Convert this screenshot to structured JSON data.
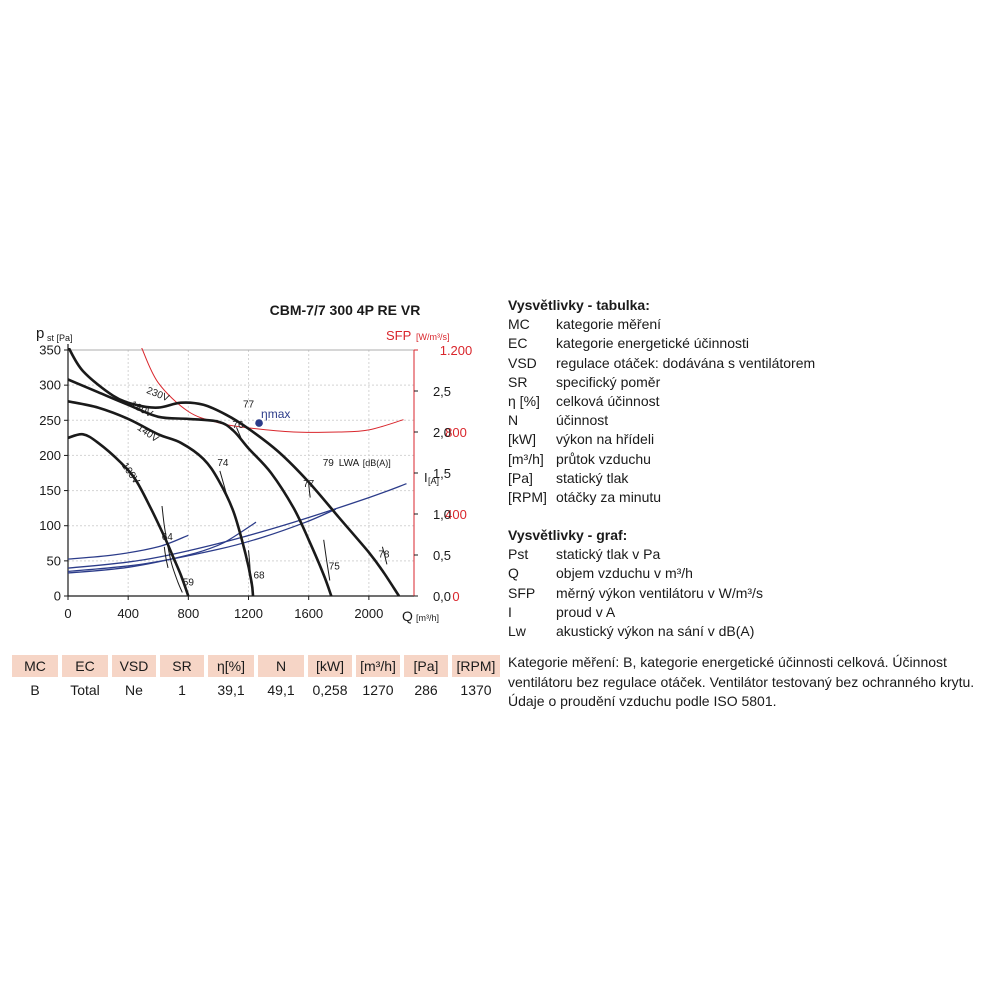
{
  "chart_data": {
    "type": "line",
    "title": "CBM-7/7 300 4P RE VR",
    "x_axis": {
      "label": "Q",
      "unit": "[m³/h]",
      "range": [
        0,
        2300
      ],
      "ticks": [
        "0",
        "400",
        "800",
        "1200",
        "1600",
        "2000"
      ]
    },
    "y_axis_left": {
      "label": "p",
      "label_sub": "st [Pa]",
      "range": [
        0,
        350
      ],
      "ticks": [
        "0",
        "50",
        "100",
        "150",
        "200",
        "250",
        "300",
        "350"
      ]
    },
    "y_axis_sfp": {
      "label": "SFP",
      "unit": "[W/m³/s]",
      "range": [
        0,
        1200
      ],
      "ticks": [
        "0",
        "400",
        "800",
        "1.200"
      ],
      "color": "#d9262c"
    },
    "y_axis_current": {
      "label": "I",
      "unit": "[A]",
      "range": [
        0,
        3.0
      ],
      "ticks": [
        "0,0",
        "0,5",
        "1,0",
        "1,5",
        "2,0",
        "2,5"
      ]
    },
    "grid": true,
    "colors": {
      "pressure": "#1a1a1a",
      "current": "#2c3c8a",
      "sfp": "#d9262c",
      "eta": "#2c3c8a"
    },
    "pressure_curves": [
      {
        "name": "230V",
        "points": [
          [
            0,
            355
          ],
          [
            100,
            320
          ],
          [
            300,
            285
          ],
          [
            450,
            272
          ],
          [
            600,
            268
          ],
          [
            750,
            275
          ],
          [
            900,
            272
          ],
          [
            1050,
            258
          ],
          [
            1200,
            238
          ],
          [
            1400,
            205
          ],
          [
            1600,
            162
          ],
          [
            1800,
            112
          ],
          [
            2000,
            62
          ],
          [
            2100,
            33
          ],
          [
            2200,
            0
          ]
        ]
      },
      {
        "name": "180V",
        "points": [
          [
            0,
            308
          ],
          [
            200,
            290
          ],
          [
            400,
            272
          ],
          [
            600,
            255
          ],
          [
            800,
            252
          ],
          [
            1000,
            248
          ],
          [
            1100,
            235
          ],
          [
            1200,
            210
          ],
          [
            1350,
            175
          ],
          [
            1500,
            125
          ],
          [
            1600,
            80
          ],
          [
            1700,
            30
          ],
          [
            1750,
            0
          ]
        ]
      },
      {
        "name": "140V",
        "points": [
          [
            0,
            277
          ],
          [
            200,
            268
          ],
          [
            400,
            252
          ],
          [
            600,
            230
          ],
          [
            750,
            218
          ],
          [
            900,
            195
          ],
          [
            1000,
            165
          ],
          [
            1100,
            120
          ],
          [
            1180,
            60
          ],
          [
            1220,
            20
          ],
          [
            1230,
            0
          ]
        ]
      },
      {
        "name": "100V",
        "points": [
          [
            0,
            225
          ],
          [
            100,
            230
          ],
          [
            200,
            218
          ],
          [
            350,
            190
          ],
          [
            450,
            165
          ],
          [
            550,
            125
          ],
          [
            650,
            80
          ],
          [
            700,
            55
          ],
          [
            750,
            30
          ],
          [
            800,
            0
          ]
        ]
      }
    ],
    "current_curves": [
      {
        "name": "230V",
        "points": [
          [
            0,
            0.34
          ],
          [
            500,
            0.44
          ],
          [
            1000,
            0.64
          ],
          [
            1500,
            0.9
          ],
          [
            2000,
            1.2
          ],
          [
            2250,
            1.37
          ]
        ]
      },
      {
        "name": "180V",
        "points": [
          [
            0,
            0.3
          ],
          [
            500,
            0.39
          ],
          [
            1000,
            0.57
          ],
          [
            1300,
            0.72
          ],
          [
            1580,
            0.9
          ],
          [
            1780,
            1.06
          ]
        ]
      },
      {
        "name": "140V",
        "points": [
          [
            0,
            0.28
          ],
          [
            400,
            0.35
          ],
          [
            800,
            0.5
          ],
          [
            1000,
            0.62
          ],
          [
            1100,
            0.72
          ],
          [
            1250,
            0.9
          ]
        ]
      },
      {
        "name": "100V",
        "points": [
          [
            0,
            0.45
          ],
          [
            300,
            0.5
          ],
          [
            600,
            0.6
          ],
          [
            800,
            0.74
          ]
        ]
      }
    ],
    "sfp_curve": {
      "points": [
        [
          490,
          1210
        ],
        [
          600,
          1040
        ],
        [
          800,
          900
        ],
        [
          1000,
          845
        ],
        [
          1200,
          820
        ],
        [
          1500,
          800
        ],
        [
          1800,
          800
        ],
        [
          2000,
          810
        ],
        [
          2230,
          860
        ]
      ]
    },
    "eta_max": {
      "label": "ηmax",
      "point": [
        1270,
        246
      ]
    },
    "iso_lines": [
      {
        "label": "59",
        "points": [
          [
            625,
            128
          ],
          [
            640,
            100
          ],
          [
            660,
            75
          ],
          [
            690,
            45
          ],
          [
            730,
            20
          ],
          [
            760,
            5
          ]
        ]
      },
      {
        "label": "64",
        "points": [
          [
            640,
            70
          ],
          [
            650,
            55
          ],
          [
            665,
            40
          ]
        ]
      },
      {
        "label": "68",
        "points": [
          [
            1200,
            65
          ],
          [
            1210,
            40
          ],
          [
            1215,
            18
          ]
        ]
      },
      {
        "label": "74",
        "points": [
          [
            1010,
            178
          ],
          [
            1060,
            140
          ]
        ]
      },
      {
        "label": "75",
        "points": [
          [
            1700,
            80
          ],
          [
            1720,
            50
          ],
          [
            1740,
            22
          ]
        ]
      },
      {
        "label": "76",
        "points": [
          [
            1120,
            240
          ],
          [
            1150,
            225
          ]
        ]
      },
      {
        "label": "77",
        "points": [
          [
            1600,
            160
          ],
          [
            1610,
            140
          ]
        ]
      },
      {
        "label": "78",
        "points": [
          [
            2090,
            70
          ],
          [
            2120,
            45
          ]
        ]
      }
    ],
    "iso_labels": [
      {
        "text": "59",
        "at": [
          800,
          15
        ]
      },
      {
        "text": "64",
        "at": [
          660,
          80
        ]
      },
      {
        "text": "68",
        "at": [
          1270,
          25
        ]
      },
      {
        "text": "74",
        "at": [
          1030,
          185
        ]
      },
      {
        "text": "75",
        "at": [
          1770,
          38
        ]
      },
      {
        "text": "76",
        "at": [
          1130,
          239
        ]
      },
      {
        "text": "77",
        "at": [
          1200,
          268
        ]
      },
      {
        "text": "77",
        "at": [
          1600,
          155
        ]
      },
      {
        "text": "78",
        "at": [
          2100,
          55
        ]
      },
      {
        "text": "79",
        "at": [
          1730,
          185
        ]
      }
    ],
    "voltage_labels": [
      {
        "text": "230V",
        "at": [
          590,
          283
        ],
        "angle": 22
      },
      {
        "text": "180V",
        "at": [
          480,
          262
        ],
        "angle": 28
      },
      {
        "text": "140V",
        "at": [
          520,
          228
        ],
        "angle": 35
      },
      {
        "text": "100V",
        "at": [
          400,
          172
        ],
        "angle": 55
      }
    ],
    "lwa_label": {
      "text": "LWA",
      "sub": "[dB(A)]",
      "at": [
        1800,
        185
      ]
    }
  },
  "parameters_table": {
    "headers": [
      "MC",
      "EC",
      "VSD",
      "SR",
      "η[%]",
      "N",
      "[kW]",
      "[m³/h]",
      "[Pa]",
      "[RPM]"
    ],
    "row": [
      "B",
      "Total",
      "Ne",
      "1",
      "39,1",
      "49,1",
      "0,258",
      "1270",
      "286",
      "1370"
    ]
  },
  "legend_table": {
    "title": "Vysvětlivky - tabulka:",
    "items": [
      {
        "key": "MC",
        "value": "kategorie měření"
      },
      {
        "key": "EC",
        "value": "kategorie energetické účinnosti"
      },
      {
        "key": "VSD",
        "value": "regulace otáček: dodávána s ventilátorem"
      },
      {
        "key": "SR",
        "value": "specifický poměr"
      },
      {
        "key": "η [%]",
        "value": "celková účinnost"
      },
      {
        "key": "N",
        "value": "účinnost"
      },
      {
        "key": "[kW]",
        "value": "výkon na hřídeli"
      },
      {
        "key": "[m³/h]",
        "value": "průtok vzduchu"
      },
      {
        "key": "[Pa]",
        "value": "statický tlak"
      },
      {
        "key": "[RPM]",
        "value": "otáčky za minutu"
      }
    ]
  },
  "legend_graph": {
    "title": "Vysvětlivky - graf:",
    "items": [
      {
        "key": "Pst",
        "value": "statický tlak v Pa"
      },
      {
        "key": "Q",
        "value": "objem vzduchu v m³/h"
      },
      {
        "key": "SFP",
        "value": "měrný výkon ventilátoru v W/m³/s"
      },
      {
        "key": "I",
        "value": "proud v A"
      },
      {
        "key": "Lw",
        "value": "akustický výkon na sání v dB(A)"
      }
    ]
  },
  "note": "Kategorie měření: B, kategorie energetické účinnosti celková. Účinnost ventilátoru bez regulace otáček. Ventilátor testovaný bez ochranného krytu. Údaje o proudění vzduchu podle ISO 5801."
}
